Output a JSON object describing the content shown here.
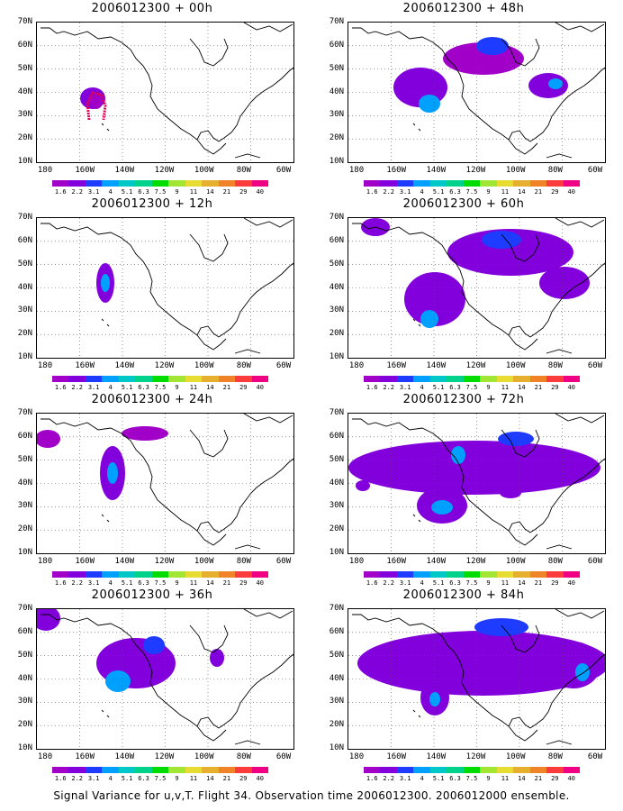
{
  "panels": [
    {
      "title": "2006012300 + 00h"
    },
    {
      "title": "2006012300 + 48h"
    },
    {
      "title": "2006012300 + 12h"
    },
    {
      "title": "2006012300 + 60h"
    },
    {
      "title": "2006012300 + 24h"
    },
    {
      "title": "2006012300 + 72h"
    },
    {
      "title": "2006012300 + 36h"
    },
    {
      "title": "2006012300 + 84h"
    }
  ],
  "lat_labels": [
    "70N",
    "60N",
    "50N",
    "40N",
    "30N",
    "20N",
    "10N"
  ],
  "lon_labels": [
    "180",
    "160W",
    "140W",
    "120W",
    "100W",
    "80W",
    "60W"
  ],
  "colorbar": {
    "labels": [
      "1.6",
      "2.2",
      "3.1",
      "4",
      "5.1",
      "6.3",
      "7.5",
      "9",
      "11",
      "14",
      "21",
      "29",
      "40"
    ],
    "colors": [
      "#a000c8",
      "#8200dc",
      "#1e3cff",
      "#00a0ff",
      "#00c8c8",
      "#00d28c",
      "#00dc00",
      "#a0e632",
      "#e6dc32",
      "#e6af2d",
      "#f08228",
      "#fa3c3c",
      "#f00082"
    ]
  },
  "caption": "Signal Variance for u,v,T. Flight 34. Observation time 2006012300. 2006012000 ensemble."
}
